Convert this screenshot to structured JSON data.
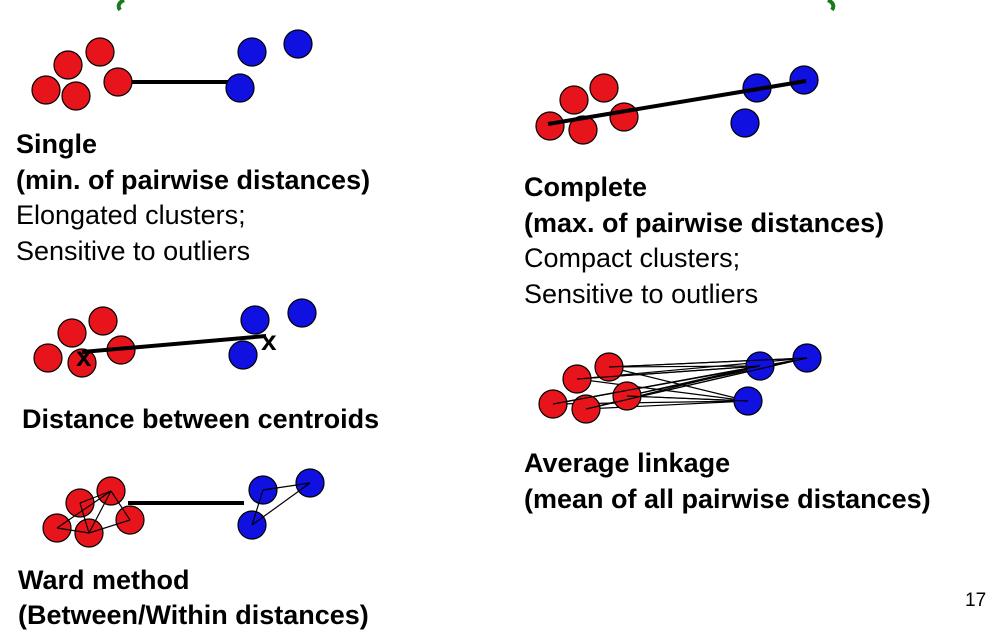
{
  "slide": {
    "page_number": "17",
    "colors": {
      "cluster_a": "#e8141c",
      "cluster_b": "#1010e0",
      "line": "#000000",
      "title_fragment": "#1a7a1a"
    }
  },
  "panels": {
    "single": {
      "title": "Single",
      "definition": "(min. of pairwise distances)",
      "property_1": "Elongated clusters;",
      "property_2": "Sensitive to outliers"
    },
    "complete": {
      "title": "Complete",
      "definition": "(max. of pairwise distances)",
      "property_1": "Compact clusters;",
      "property_2": "Sensitive to outliers"
    },
    "centroid": {
      "title": "Distance between centroids",
      "centroid_marker_a": "x",
      "centroid_marker_b": "x"
    },
    "average": {
      "title": "Average linkage",
      "definition": "(mean of all pairwise distances)"
    },
    "ward": {
      "title": "Ward method",
      "definition": "(Between/Within distances)"
    }
  }
}
